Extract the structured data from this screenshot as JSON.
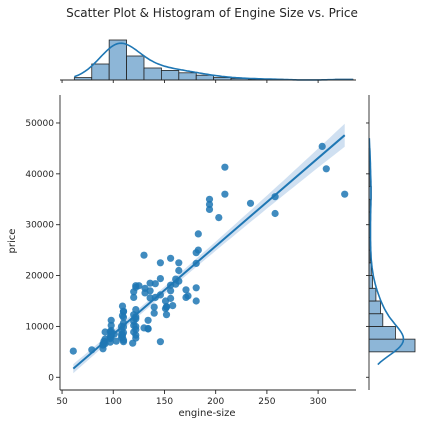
{
  "chart_data": {
    "type": "scatter",
    "title": "Scatter Plot & Histogram of Engine Size vs. Price",
    "xlabel": "engine-size",
    "ylabel": "price",
    "xlim": [
      48,
      337
    ],
    "ylim": [
      -2500,
      55500
    ],
    "xticks": [
      50,
      100,
      150,
      200,
      250,
      300
    ],
    "yticks": [
      0,
      10000,
      20000,
      30000,
      40000,
      50000
    ],
    "grid": false,
    "colors": {
      "points": "#1f77b4",
      "hist_fill": "#8db6d7",
      "ci_band": "#c8dbee"
    },
    "points": [
      [
        61,
        5150
      ],
      [
        79,
        5400
      ],
      [
        90,
        6300
      ],
      [
        90,
        5600
      ],
      [
        91,
        6700
      ],
      [
        91,
        7100
      ],
      [
        92,
        7500
      ],
      [
        92,
        6600
      ],
      [
        92,
        8900
      ],
      [
        97,
        7600
      ],
      [
        97,
        9000
      ],
      [
        97,
        6900
      ],
      [
        98,
        7900
      ],
      [
        98,
        8200
      ],
      [
        98,
        8800
      ],
      [
        98,
        9200
      ],
      [
        98,
        10200
      ],
      [
        98,
        11200
      ],
      [
        98,
        8400
      ],
      [
        103,
        7100
      ],
      [
        108,
        7800
      ],
      [
        108,
        8400
      ],
      [
        108,
        9300
      ],
      [
        109,
        7900
      ],
      [
        109,
        8400
      ],
      [
        110,
        8800
      ],
      [
        110,
        11800
      ],
      [
        110,
        13000
      ],
      [
        110,
        9900
      ],
      [
        110,
        7300
      ],
      [
        110,
        7000
      ],
      [
        110,
        10700
      ],
      [
        109,
        12100
      ],
      [
        109,
        14000
      ],
      [
        119,
        6700
      ],
      [
        120,
        8900
      ],
      [
        120,
        10200
      ],
      [
        120,
        11000
      ],
      [
        120,
        12300
      ],
      [
        120,
        15700
      ],
      [
        122,
        7700
      ],
      [
        122,
        8300
      ],
      [
        122,
        9400
      ],
      [
        122,
        10000
      ],
      [
        122,
        11500
      ],
      [
        122,
        11900
      ],
      [
        122,
        13300
      ],
      [
        122,
        17700
      ],
      [
        122,
        18000
      ],
      [
        130,
        9700
      ],
      [
        131,
        16600
      ],
      [
        131,
        17500
      ],
      [
        134,
        9500
      ],
      [
        134,
        9600
      ],
      [
        134,
        11200
      ],
      [
        136,
        17000
      ],
      [
        136,
        18500
      ],
      [
        140,
        13800
      ],
      [
        141,
        15700
      ],
      [
        141,
        18400
      ],
      [
        146,
        7000
      ],
      [
        146,
        16200
      ],
      [
        146,
        19400
      ],
      [
        151,
        15000
      ],
      [
        151,
        13500
      ],
      [
        152,
        12300
      ],
      [
        152,
        13800
      ],
      [
        156,
        15500
      ],
      [
        156,
        17000
      ],
      [
        156,
        18100
      ],
      [
        158,
        14100
      ],
      [
        161,
        18300
      ],
      [
        161,
        19300
      ],
      [
        164,
        18900
      ],
      [
        164,
        22500
      ],
      [
        171,
        15700
      ],
      [
        173,
        16000
      ],
      [
        181,
        15000
      ],
      [
        181,
        17600
      ],
      [
        181,
        22400
      ],
      [
        183,
        25000
      ],
      [
        183,
        28200
      ],
      [
        194,
        35000
      ],
      [
        194,
        33000
      ],
      [
        194,
        34000
      ],
      [
        203,
        31400
      ],
      [
        209,
        36000
      ],
      [
        209,
        41300
      ],
      [
        234,
        34200
      ],
      [
        258,
        32200
      ],
      [
        258,
        35500
      ],
      [
        304,
        45400
      ],
      [
        308,
        41000
      ],
      [
        326,
        36000
      ],
      [
        90,
        6500
      ],
      [
        97,
        8000
      ],
      [
        101,
        8500
      ],
      [
        108,
        10000
      ],
      [
        110,
        12900
      ],
      [
        120,
        16800
      ],
      [
        136,
        15600
      ],
      [
        152,
        13900
      ],
      [
        164,
        21000
      ],
      [
        171,
        17200
      ],
      [
        181,
        24500
      ],
      [
        140,
        12600
      ],
      [
        130,
        24000
      ],
      [
        146,
        22500
      ],
      [
        156,
        23400
      ],
      [
        125,
        18000
      ]
    ],
    "regression": {
      "x": [
        61,
        326
      ],
      "y": [
        1700,
        47600
      ]
    },
    "top_histogram": {
      "bin_edges": [
        62,
        79,
        96,
        113,
        130,
        147,
        164,
        181,
        198,
        215,
        232,
        249,
        266,
        283,
        300,
        317,
        334
      ],
      "counts": [
        3,
        20,
        50,
        30,
        15,
        12,
        9,
        6,
        3,
        2,
        1,
        1,
        0,
        0,
        0,
        1
      ]
    },
    "right_histogram": {
      "bin_edges": [
        5000,
        7500,
        10000,
        12500,
        15000,
        17500,
        20000,
        22500,
        25000,
        27500,
        30000,
        32500,
        35000,
        37500,
        40000,
        42500,
        45000
      ],
      "counts": [
        40,
        23,
        12,
        10,
        6,
        3,
        2,
        1,
        1,
        1,
        1,
        1,
        2,
        1,
        1,
        1
      ]
    }
  }
}
